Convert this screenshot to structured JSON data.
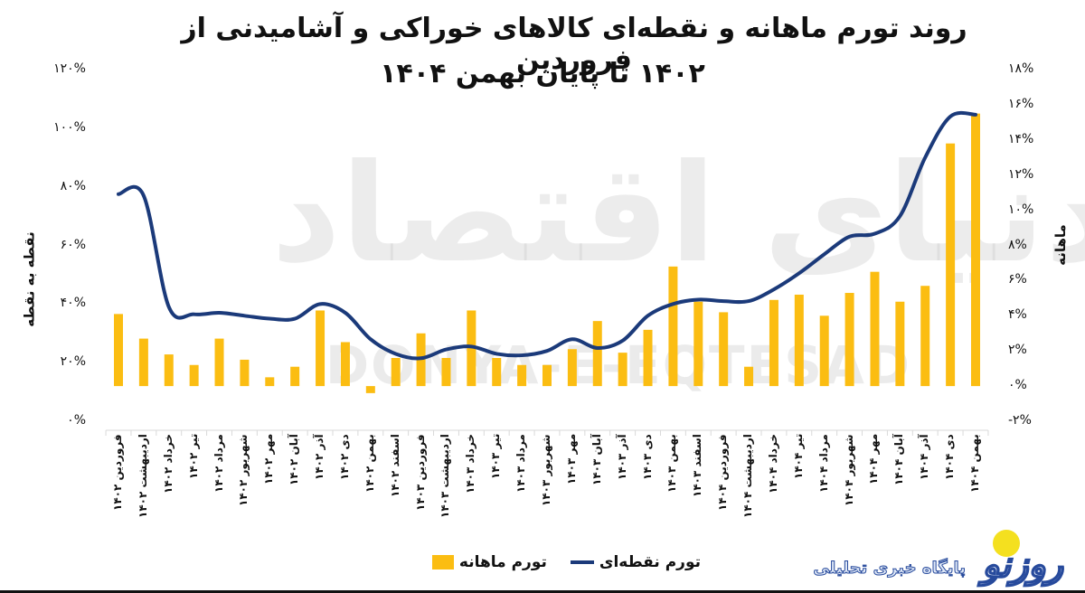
{
  "header": {
    "title_line1": "روند تورم ماهانه و نقطه‌ای کالاهای خوراکی و آشامیدنی از فروردین",
    "title_line2": "۱۴۰۲ تا پایان بهمن ۱۴۰۴"
  },
  "axes": {
    "left_title": "نقطه به نقطه",
    "right_title": "ماهانه",
    "left_ticks": [
      "۱۲۰%",
      "۱۰۰%",
      "۸۰%",
      "۶۰%",
      "۴۰%",
      "۲۰%",
      "۰%"
    ],
    "right_ticks": [
      "۱۸%",
      "۱۶%",
      "۱۴%",
      "۱۲%",
      "۱۰%",
      "۸%",
      "۶%",
      "۴%",
      "۲%",
      "۰%",
      "-۲%"
    ]
  },
  "legend": {
    "line_label": "تورم نقطه‌ای",
    "bar_label": "تورم ماهانه"
  },
  "watermark": {
    "fa": "دنیای اقتصاد",
    "en": "DONYA-E-EQTESAD"
  },
  "logo": {
    "mark": "روزنو",
    "tagline": "پایگاه خبری تحلیلی"
  },
  "colors": {
    "bar": "#fbbd12",
    "line": "#1b3a7a",
    "logo_sun": "#f4e01f",
    "logo_blue": "#274a9c"
  },
  "chart_data": {
    "type": "bar+line",
    "title": "روند تورم ماهانه و نقطه‌ای کالاهای خوراکی و آشامیدنی از فروردین ۱۴۰۲ تا پایان بهمن ۱۴۰۴",
    "xlabel": "",
    "ylabel_left": "نقطه به نقطه",
    "ylabel_right": "ماهانه",
    "ylim_left": [
      0,
      120
    ],
    "ylim_right": [
      -2,
      18
    ],
    "grid": false,
    "legend_position": "bottom",
    "categories": [
      "فروردین ۱۴۰۲",
      "اردیبهشت ۱۴۰۲",
      "خرداد ۱۴۰۲",
      "تیر ۱۴۰۲",
      "مرداد ۱۴۰۲",
      "شهریور ۱۴۰۲",
      "مهر ۱۴۰۲",
      "آبان ۱۴۰۲",
      "آذر ۱۴۰۲",
      "دی ۱۴۰۲",
      "بهمن ۱۴۰۲",
      "اسفند ۱۴۰۲",
      "فروردین ۱۴۰۳",
      "اردیبهشت ۱۴۰۳",
      "خرداد ۱۴۰۳",
      "تیر ۱۴۰۳",
      "مرداد ۱۴۰۳",
      "شهریور ۱۴۰۳",
      "مهر ۱۴۰۳",
      "آبان ۱۴۰۳",
      "آذر ۱۴۰۳",
      "دی ۱۴۰۳",
      "بهمن ۱۴۰۳",
      "اسفند ۱۴۰۳",
      "فروردین ۱۴۰۴",
      "اردیبهشت ۱۴۰۴",
      "خرداد ۱۴۰۴",
      "تیر ۱۴۰۴",
      "مرداد ۱۴۰۴",
      "شهریور ۱۴۰۴",
      "مهر ۱۴۰۴",
      "آبان ۱۴۰۴",
      "آذر ۱۴۰۴",
      "دی ۱۴۰۴",
      "بهمن ۱۴۰۴"
    ],
    "series": [
      {
        "name": "تورم ماهانه",
        "type": "bar",
        "axis": "right",
        "unit": "%",
        "values": [
          4.1,
          2.7,
          1.8,
          1.2,
          2.7,
          1.5,
          0.5,
          1.1,
          4.3,
          2.5,
          -0.4,
          1.6,
          3.0,
          1.6,
          4.3,
          1.6,
          1.2,
          1.2,
          2.1,
          3.7,
          1.9,
          3.2,
          6.8,
          4.8,
          4.2,
          1.1,
          4.9,
          5.2,
          4.0,
          5.3,
          6.5,
          4.8,
          5.7,
          13.8,
          15.5
        ]
      },
      {
        "name": "تورم نقطه‌ای",
        "type": "line",
        "axis": "left",
        "unit": "%",
        "values": [
          77.5,
          77,
          39,
          36.5,
          37,
          36,
          35,
          35,
          40,
          37,
          28,
          23,
          21.5,
          24.5,
          25.5,
          23,
          22.5,
          24,
          28,
          25,
          27.5,
          36,
          40,
          41.5,
          41,
          41,
          45,
          50.5,
          57,
          63,
          64,
          70,
          90,
          104,
          104
        ]
      }
    ]
  }
}
